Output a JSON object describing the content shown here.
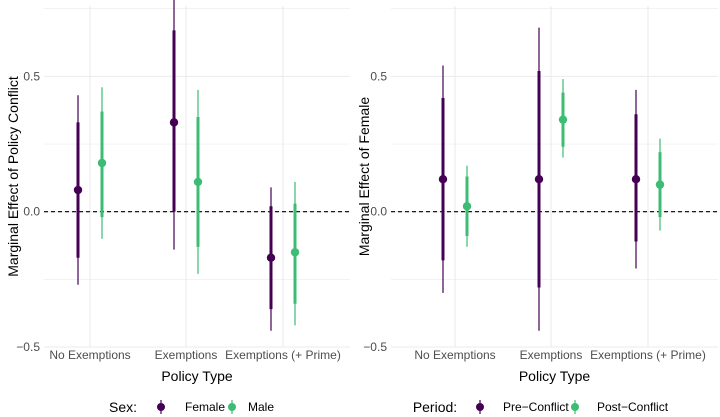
{
  "colors": {
    "dark": "#440154",
    "green": "#3dbc74",
    "grid": "#ebebeb",
    "zero_line": "#000000"
  },
  "chart_data": [
    {
      "type": "dot-whisker",
      "ylabel": "Marginal Effect of Policy Conflict",
      "xlabel": "Policy Type",
      "categories": [
        "No Exemptions",
        "Exemptions",
        "Exemptions (+ Prime)"
      ],
      "ylim": [
        -0.5,
        0.76
      ],
      "yticks": [
        {
          "value": -0.5,
          "label": "−0.5"
        },
        {
          "value": 0.0,
          "label": "0.0"
        },
        {
          "value": 0.5,
          "label": "0.5"
        }
      ],
      "reference_line": 0,
      "grid": true,
      "legend": {
        "title": "Sex:",
        "position": "bottom",
        "entries": [
          {
            "label": "Female",
            "color": "#440154"
          },
          {
            "label": "Male",
            "color": "#3dbc74"
          }
        ]
      },
      "series": [
        {
          "color": "#440154",
          "points": [
            {
              "category": "No Exemptions",
              "estimate": 0.08,
              "ci_inner": [
                -0.17,
                0.33
              ],
              "ci_outer": [
                -0.27,
                0.43
              ]
            },
            {
              "category": "Exemptions",
              "estimate": 0.33,
              "ci_inner": [
                0.0,
                0.67
              ],
              "ci_outer": [
                -0.14,
                0.8
              ]
            },
            {
              "category": "Exemptions (+ Prime)",
              "estimate": -0.17,
              "ci_inner": [
                -0.36,
                0.02
              ],
              "ci_outer": [
                -0.44,
                0.09
              ]
            }
          ]
        },
        {
          "color": "#3dbc74",
          "points": [
            {
              "category": "No Exemptions",
              "estimate": 0.18,
              "ci_inner": [
                -0.02,
                0.37
              ],
              "ci_outer": [
                -0.1,
                0.46
              ]
            },
            {
              "category": "Exemptions",
              "estimate": 0.11,
              "ci_inner": [
                -0.13,
                0.35
              ],
              "ci_outer": [
                -0.23,
                0.45
              ]
            },
            {
              "category": "Exemptions (+ Prime)",
              "estimate": -0.15,
              "ci_inner": [
                -0.34,
                0.03
              ],
              "ci_outer": [
                -0.42,
                0.11
              ]
            }
          ]
        }
      ]
    },
    {
      "type": "dot-whisker",
      "ylabel": "Marginal Effect of Female",
      "xlabel": "Policy Type",
      "categories": [
        "No Exemptions",
        "Exemptions",
        "Exemptions (+ Prime)"
      ],
      "ylim": [
        -0.5,
        0.76
      ],
      "yticks": [
        {
          "value": -0.5,
          "label": "−0.5"
        },
        {
          "value": 0.0,
          "label": "0.0"
        },
        {
          "value": 0.5,
          "label": "0.5"
        }
      ],
      "reference_line": 0,
      "grid": true,
      "legend": {
        "title": "Period:",
        "position": "bottom",
        "entries": [
          {
            "label": "Pre−Conflict",
            "color": "#440154"
          },
          {
            "label": "Post−Conflict",
            "color": "#3dbc74"
          }
        ]
      },
      "series": [
        {
          "color": "#440154",
          "points": [
            {
              "category": "No Exemptions",
              "estimate": 0.12,
              "ci_inner": [
                -0.18,
                0.42
              ],
              "ci_outer": [
                -0.3,
                0.54
              ]
            },
            {
              "category": "Exemptions",
              "estimate": 0.12,
              "ci_inner": [
                -0.28,
                0.52
              ],
              "ci_outer": [
                -0.44,
                0.68
              ]
            },
            {
              "category": "Exemptions (+ Prime)",
              "estimate": 0.12,
              "ci_inner": [
                -0.11,
                0.36
              ],
              "ci_outer": [
                -0.21,
                0.45
              ]
            }
          ]
        },
        {
          "color": "#3dbc74",
          "points": [
            {
              "category": "No Exemptions",
              "estimate": 0.02,
              "ci_inner": [
                -0.09,
                0.13
              ],
              "ci_outer": [
                -0.13,
                0.17
              ]
            },
            {
              "category": "Exemptions",
              "estimate": 0.34,
              "ci_inner": [
                0.24,
                0.44
              ],
              "ci_outer": [
                0.2,
                0.49
              ]
            },
            {
              "category": "Exemptions (+ Prime)",
              "estimate": 0.1,
              "ci_inner": [
                -0.02,
                0.22
              ],
              "ci_outer": [
                -0.07,
                0.27
              ]
            }
          ]
        }
      ]
    }
  ]
}
